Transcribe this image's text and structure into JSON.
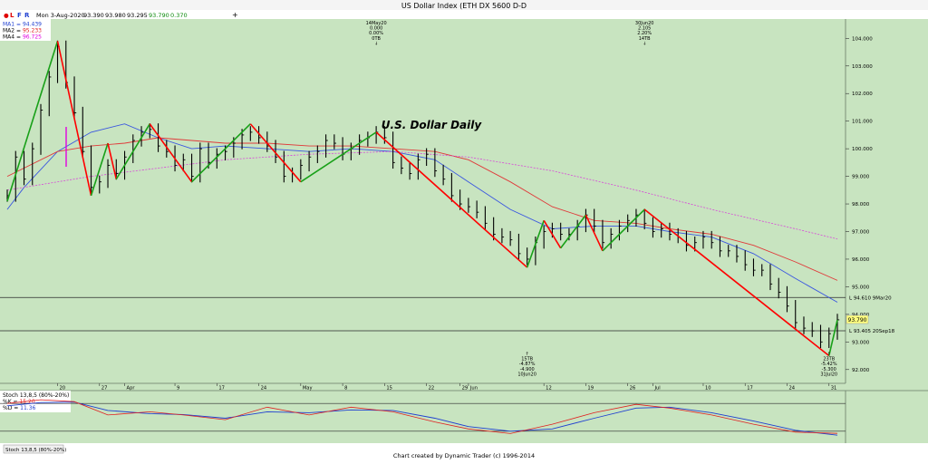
{
  "window_title": "US Dollar Index (ETH DX 5600 D-D",
  "info_bar": {
    "menu": [
      "L",
      "F",
      "R"
    ],
    "date": "Mon 3-Aug-2020",
    "open": "93.390",
    "high": "93.980",
    "low": "93.295",
    "close": "93.790",
    "change": "0.370"
  },
  "legend": [
    {
      "label": "MA1 = ",
      "value": "94.439",
      "color": "#1f3fd0"
    },
    {
      "label": "MA2 = ",
      "value": "95.233",
      "color": "#e02020"
    },
    {
      "label": "MA4 = ",
      "value": "96.725",
      "color": "#e000e0"
    }
  ],
  "chart_title": "U.S. Dollar Daily",
  "footer_text": "Chart created by Dynamic Trader  (c) 1996-2014",
  "price_tag": "93.790",
  "hlines": [
    {
      "price": 94.61,
      "label": "L 94.610 9Mar20"
    },
    {
      "price": 93.405,
      "label": "L 93.405 20Sep18"
    }
  ],
  "annotations": [
    {
      "lines": [
        "14May20",
        "0.000",
        "0.00%",
        "0TB",
        "↓"
      ]
    },
    {
      "lines": [
        "30Jun20",
        "2.105",
        "2.20%",
        "14TB",
        "↓"
      ]
    },
    {
      "lines": [
        "↑",
        "15TB",
        "-4.87%",
        "-4.900",
        "10Jun20"
      ]
    },
    {
      "lines": [
        "↑",
        "23TB",
        "-5.42%",
        "-5.300",
        "31Jul20"
      ]
    }
  ],
  "stoch_panel": {
    "label": "Stoch 13,8,5 (80%-20%)",
    "k_label": "%K = ",
    "k_value": "15.20",
    "d_label": "%D = ",
    "d_value": "11.36",
    "tab_label": "Stoch 13,8,5 (80%-20%)",
    "k_color": "#e02020",
    "d_color": "#1f3fd0"
  },
  "colors": {
    "background": "#c8e4c0",
    "up_swing": "#18a018",
    "down_swing": "#ff0000",
    "ma1": "#3a56e0",
    "ma2": "#e03a3a",
    "ma4": "#d848d8"
  },
  "chart_data": {
    "type": "line",
    "title": "U.S. Dollar Daily",
    "y_tick_labels": [
      "104.000",
      "103.000",
      "102.000",
      "101.000",
      "100.000",
      "99.000",
      "98.000",
      "97.000",
      "96.000",
      "95.000",
      "94.000",
      "93.000",
      "92.000"
    ],
    "ylim": [
      91.5,
      104.7
    ],
    "x_tick_labels": [
      "20",
      "27",
      "Apr",
      "9",
      "17",
      "24",
      "May",
      "8",
      "15",
      "22",
      "29",
      "Jun",
      "12",
      "19",
      "26",
      "Jul",
      "10",
      "17",
      "24",
      "31"
    ],
    "series": [
      {
        "name": "Close",
        "x": [
          "2020-03-12",
          "2020-03-13",
          "2020-03-16",
          "2020-03-17",
          "2020-03-18",
          "2020-03-19",
          "2020-03-20",
          "2020-03-23",
          "2020-03-24",
          "2020-03-25",
          "2020-03-26",
          "2020-03-27",
          "2020-03-30",
          "2020-03-31",
          "2020-04-01",
          "2020-04-02",
          "2020-04-03",
          "2020-04-06",
          "2020-04-07",
          "2020-04-08",
          "2020-04-09",
          "2020-04-13",
          "2020-04-14",
          "2020-04-15",
          "2020-04-16",
          "2020-04-17",
          "2020-04-20",
          "2020-04-21",
          "2020-04-22",
          "2020-04-23",
          "2020-04-24",
          "2020-04-27",
          "2020-04-28",
          "2020-04-29",
          "2020-04-30",
          "2020-05-01",
          "2020-05-04",
          "2020-05-05",
          "2020-05-06",
          "2020-05-07",
          "2020-05-08",
          "2020-05-11",
          "2020-05-12",
          "2020-05-13",
          "2020-05-14",
          "2020-05-15",
          "2020-05-18",
          "2020-05-19",
          "2020-05-20",
          "2020-05-21",
          "2020-05-22",
          "2020-05-26",
          "2020-05-27",
          "2020-05-28",
          "2020-05-29",
          "2020-06-01",
          "2020-06-02",
          "2020-06-03",
          "2020-06-04",
          "2020-06-05",
          "2020-06-08",
          "2020-06-09",
          "2020-06-10",
          "2020-06-11",
          "2020-06-12",
          "2020-06-15",
          "2020-06-16",
          "2020-06-17",
          "2020-06-18",
          "2020-06-19",
          "2020-06-22",
          "2020-06-23",
          "2020-06-24",
          "2020-06-25",
          "2020-06-26",
          "2020-06-29",
          "2020-06-30",
          "2020-07-01",
          "2020-07-02",
          "2020-07-06",
          "2020-07-07",
          "2020-07-08",
          "2020-07-09",
          "2020-07-10",
          "2020-07-13",
          "2020-07-14",
          "2020-07-15",
          "2020-07-16",
          "2020-07-17",
          "2020-07-20",
          "2020-07-21",
          "2020-07-22",
          "2020-07-23",
          "2020-07-24",
          "2020-07-27",
          "2020-07-28",
          "2020-07-29",
          "2020-07-30",
          "2020-07-31",
          "2020-08-03"
        ],
        "values": [
          98.3,
          99.7,
          98.9,
          100.0,
          101.4,
          102.6,
          103.7,
          102.4,
          101.3,
          99.9,
          98.6,
          98.8,
          99.4,
          99.1,
          99.7,
          100.3,
          100.6,
          100.7,
          100.1,
          99.9,
          99.4,
          99.6,
          99.0,
          100.0,
          99.5,
          99.8,
          99.9,
          100.2,
          100.5,
          100.6,
          100.4,
          100.1,
          99.7,
          99.0,
          99.1,
          99.4,
          99.7,
          99.9,
          100.3,
          100.2,
          99.8,
          100.0,
          100.3,
          100.4,
          100.6,
          100.4,
          99.5,
          99.3,
          99.1,
          99.6,
          99.8,
          99.2,
          98.9,
          98.3,
          98.0,
          97.9,
          97.7,
          97.3,
          96.9,
          96.8,
          96.7,
          96.2,
          96.0,
          96.6,
          97.0,
          97.1,
          96.9,
          96.9,
          97.2,
          97.6,
          97.2,
          96.6,
          96.9,
          97.2,
          97.4,
          97.6,
          97.3,
          97.0,
          97.1,
          96.9,
          96.8,
          96.5,
          96.6,
          96.8,
          96.6,
          96.3,
          96.3,
          96.1,
          95.8,
          95.6,
          95.6,
          95.1,
          94.8,
          94.3,
          93.7,
          93.5,
          93.4,
          93.0,
          93.3,
          93.8
        ]
      },
      {
        "name": "MA1",
        "x": [
          "2020-03-12",
          "2020-03-16",
          "2020-03-20",
          "2020-03-26",
          "2020-04-01",
          "2020-04-07",
          "2020-04-14",
          "2020-04-20",
          "2020-04-27",
          "2020-05-04",
          "2020-05-11",
          "2020-05-18",
          "2020-05-26",
          "2020-06-01",
          "2020-06-08",
          "2020-06-15",
          "2020-06-22",
          "2020-06-29",
          "2020-07-06",
          "2020-07-13",
          "2020-07-20",
          "2020-07-27",
          "2020-08-03"
        ],
        "values": [
          97.8,
          98.6,
          99.9,
          100.6,
          100.9,
          100.4,
          100.0,
          100.1,
          100.0,
          99.9,
          100.0,
          99.9,
          99.6,
          98.8,
          97.8,
          97.1,
          97.2,
          97.2,
          97.0,
          96.8,
          96.2,
          95.3,
          94.44
        ]
      },
      {
        "name": "MA2",
        "x": [
          "2020-03-12",
          "2020-03-20",
          "2020-03-26",
          "2020-04-01",
          "2020-04-07",
          "2020-04-14",
          "2020-04-20",
          "2020-04-27",
          "2020-05-04",
          "2020-05-11",
          "2020-05-18",
          "2020-05-26",
          "2020-06-01",
          "2020-06-08",
          "2020-06-15",
          "2020-06-22",
          "2020-06-29",
          "2020-07-06",
          "2020-07-13",
          "2020-07-20",
          "2020-07-27",
          "2020-08-03"
        ],
        "values": [
          99.0,
          99.9,
          100.1,
          100.2,
          100.4,
          100.3,
          100.2,
          100.2,
          100.1,
          100.1,
          100.0,
          99.9,
          99.6,
          98.8,
          97.9,
          97.4,
          97.3,
          97.1,
          96.9,
          96.5,
          95.9,
          95.23
        ]
      },
      {
        "name": "MA4",
        "x": [
          "2020-03-12",
          "2020-03-26",
          "2020-04-07",
          "2020-04-20",
          "2020-05-04",
          "2020-05-18",
          "2020-06-01",
          "2020-06-15",
          "2020-06-29",
          "2020-07-13",
          "2020-07-27",
          "2020-08-03"
        ],
        "values": [
          98.5,
          99.0,
          99.3,
          99.6,
          99.8,
          99.9,
          99.7,
          99.2,
          98.5,
          97.8,
          97.1,
          96.73
        ]
      }
    ],
    "swing_points": {
      "x": [
        "2020-03-12",
        "2020-03-20",
        "2020-03-26",
        "2020-03-30",
        "2020-03-31",
        "2020-04-06",
        "2020-04-14",
        "2020-04-23",
        "2020-05-01",
        "2020-05-14",
        "2020-06-10",
        "2020-06-12",
        "2020-06-16",
        "2020-06-19",
        "2020-06-23",
        "2020-06-30",
        "2020-07-31",
        "2020-08-03"
      ],
      "values": [
        98.1,
        103.9,
        98.3,
        100.2,
        98.9,
        100.9,
        98.8,
        100.9,
        98.8,
        100.6,
        95.7,
        97.4,
        96.4,
        97.6,
        96.3,
        97.8,
        92.5,
        93.8
      ]
    },
    "stochastic": {
      "x": [
        "2020-03-12",
        "2020-03-18",
        "2020-03-24",
        "2020-03-30",
        "2020-04-06",
        "2020-04-13",
        "2020-04-20",
        "2020-04-27",
        "2020-05-04",
        "2020-05-11",
        "2020-05-18",
        "2020-05-26",
        "2020-06-01",
        "2020-06-08",
        "2020-06-15",
        "2020-06-22",
        "2020-06-29",
        "2020-07-06",
        "2020-07-13",
        "2020-07-20",
        "2020-07-27",
        "2020-08-03"
      ],
      "k": [
        80,
        88,
        84,
        55,
        62,
        55,
        45,
        72,
        55,
        72,
        62,
        40,
        25,
        15,
        35,
        60,
        78,
        70,
        55,
        35,
        18,
        15.2
      ],
      "d": [
        75,
        82,
        83,
        65,
        58,
        56,
        48,
        62,
        60,
        66,
        65,
        48,
        30,
        20,
        25,
        48,
        70,
        72,
        60,
        42,
        22,
        11.36
      ],
      "ylim": [
        0,
        100
      ],
      "levels": [
        80,
        20
      ]
    }
  }
}
